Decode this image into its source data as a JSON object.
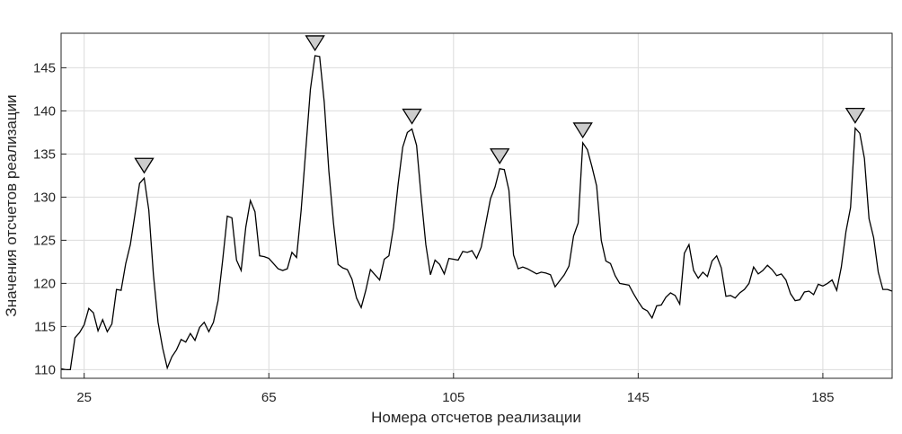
{
  "chart_data": {
    "type": "line",
    "xlabel": "Номера отсчетов реализации",
    "ylabel": "Значения отсчетов реализации",
    "x": [
      20,
      21,
      22,
      23,
      24,
      25,
      26,
      27,
      28,
      29,
      30,
      31,
      32,
      33,
      34,
      35,
      36,
      37,
      38,
      39,
      40,
      41,
      42,
      43,
      44,
      45,
      46,
      47,
      48,
      49,
      50,
      51,
      52,
      53,
      54,
      55,
      56,
      57,
      58,
      59,
      60,
      61,
      62,
      63,
      64,
      65,
      66,
      67,
      68,
      69,
      70,
      71,
      72,
      73,
      74,
      75,
      76,
      77,
      78,
      79,
      80,
      81,
      82,
      83,
      84,
      85,
      86,
      87,
      88,
      89,
      90,
      91,
      92,
      93,
      94,
      95,
      96,
      97,
      98,
      99,
      100,
      101,
      102,
      103,
      104,
      105,
      106,
      107,
      108,
      109,
      110,
      111,
      112,
      113,
      114,
      115,
      116,
      117,
      118,
      119,
      120,
      121,
      122,
      123,
      124,
      125,
      126,
      127,
      128,
      129,
      130,
      131,
      132,
      133,
      134,
      135,
      136,
      137,
      138,
      139,
      140,
      141,
      142,
      143,
      144,
      145,
      146,
      147,
      148,
      149,
      150,
      151,
      152,
      153,
      154,
      155,
      156,
      157,
      158,
      159,
      160,
      161,
      162,
      163,
      164,
      165,
      166,
      167,
      168,
      169,
      170,
      171,
      172,
      173,
      174,
      175,
      176,
      177,
      178,
      179,
      180,
      181,
      182,
      183,
      184,
      185,
      186,
      187,
      188,
      189,
      190,
      191,
      192,
      193,
      194,
      195,
      196,
      197,
      198,
      199,
      200
    ],
    "series": [
      {
        "color": "#000000",
        "values": [
          110.1,
          110,
          110,
          113.7,
          114.3,
          115.2,
          117.1,
          116.6,
          114.5,
          115.8,
          114.4,
          115.3,
          119.3,
          119.2,
          122.3,
          124.5,
          128,
          131.6,
          132.2,
          128.5,
          121,
          115.5,
          112.5,
          110.2,
          111.5,
          112.3,
          113.5,
          113.2,
          114.2,
          113.4,
          114.9,
          115.5,
          114.4,
          115.5,
          118,
          122.7,
          127.8,
          127.6,
          122.7,
          121.5,
          126.5,
          129.6,
          128.3,
          123.2,
          123.1,
          122.9,
          122.3,
          121.7,
          121.5,
          121.7,
          123.6,
          123,
          128.5,
          135.5,
          142.5,
          146.4,
          146.3,
          141,
          133,
          127,
          122.2,
          121.8,
          121.6,
          120.5,
          118.3,
          117.2,
          119.2,
          121.6,
          121,
          120.4,
          122.8,
          123.2,
          126.5,
          131.5,
          135.8,
          137.5,
          137.9,
          136,
          130,
          124.5,
          121,
          122.7,
          122.2,
          121.1,
          122.9,
          122.8,
          122.7,
          123.7,
          123.6,
          123.8,
          122.9,
          124.2,
          127,
          129.8,
          131.2,
          133.3,
          133.2,
          130.8,
          123.3,
          121.7,
          121.9,
          121.7,
          121.4,
          121.1,
          121.3,
          121.2,
          121,
          119.6,
          120.3,
          121,
          122,
          125.5,
          127,
          136.3,
          135.5,
          133.5,
          131.3,
          125,
          122.6,
          122.3,
          120.9,
          120,
          119.9,
          119.8,
          118.8,
          117.9,
          117.1,
          116.8,
          116,
          117.4,
          117.5,
          118.4,
          118.9,
          118.6,
          117.6,
          123.5,
          124.5,
          121.5,
          120.6,
          121.3,
          120.8,
          122.6,
          123.2,
          121.8,
          118.5,
          118.6,
          118.3,
          118.9,
          119.3,
          120,
          121.9,
          121.1,
          121.5,
          122.1,
          121.6,
          120.9,
          121.1,
          120.4,
          118.8,
          118,
          118.1,
          119,
          119.1,
          118.7,
          119.9,
          119.7,
          120,
          120.4,
          119.2,
          121.9,
          126,
          128.8,
          138,
          137.4,
          134.5,
          127.5,
          125.3,
          121.3,
          119.3,
          119.3,
          119.1
        ]
      }
    ],
    "peaks": {
      "x": [
        38,
        75,
        96,
        115,
        133,
        192
      ],
      "values": [
        132.2,
        146.4,
        137.9,
        133.3,
        136.3,
        138
      ],
      "color": "#cccccc"
    },
    "xlim": [
      20,
      200
    ],
    "ylim": [
      109,
      149
    ],
    "xticks": [
      25,
      65,
      105,
      145,
      185
    ],
    "yticks": [
      110,
      115,
      120,
      125,
      130,
      135,
      140,
      145
    ],
    "grid": true
  }
}
